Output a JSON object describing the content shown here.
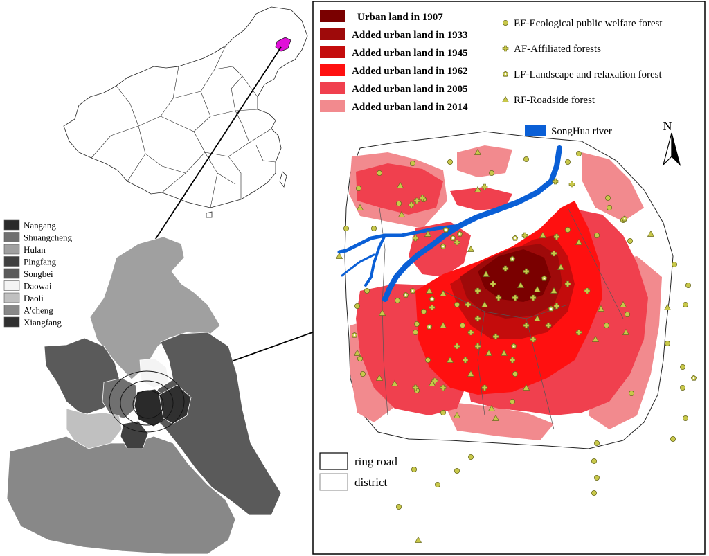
{
  "districts_legend": [
    {
      "name": "Nangang",
      "color": "#2a2a2a"
    },
    {
      "name": "Shuangcheng",
      "color": "#707070"
    },
    {
      "name": "Hulan",
      "color": "#a0a0a0"
    },
    {
      "name": "Pingfang",
      "color": "#404040"
    },
    {
      "name": "Songbei",
      "color": "#5a5a5a"
    },
    {
      "name": "Daowai",
      "color": "#f4f4f4"
    },
    {
      "name": "Daoli",
      "color": "#c0c0c0"
    },
    {
      "name": "A'cheng",
      "color": "#888888"
    },
    {
      "name": "Xiangfang",
      "color": "#303030"
    }
  ],
  "urban_legend": [
    {
      "label": "Urban land in 1907",
      "color": "#7a0000"
    },
    {
      "label": "Added urban land in 1933",
      "color": "#9e0a0a"
    },
    {
      "label": "Added urban land in 1945",
      "color": "#c40c0c"
    },
    {
      "label": "Added urban land in 1962",
      "color": "#ff1010"
    },
    {
      "label": "Added urban land in 2005",
      "color": "#f0404e"
    },
    {
      "label": "Added urban land in 2014",
      "color": "#f28a8e"
    }
  ],
  "forest_legend": [
    {
      "label": "EF-Ecological public welfare forest",
      "symbol": "circle"
    },
    {
      "label": "AF-Affiliated forests",
      "symbol": "cross"
    },
    {
      "label": "LF-Landscape and relaxation forest",
      "symbol": "pentagon"
    },
    {
      "label": "RF-Roadside forest",
      "symbol": "triangle"
    }
  ],
  "river_legend": {
    "label": "SongHua river",
    "color": "#0a5fd6"
  },
  "boundary_legend": [
    {
      "label": "ring road"
    },
    {
      "label": "district"
    }
  ],
  "north_label": "N",
  "colors": {
    "highlight_province": "#e010d8",
    "symbol_fill": "#c8c84a",
    "symbol_stroke": "#6a6a20",
    "river": "#0a5fd6"
  }
}
